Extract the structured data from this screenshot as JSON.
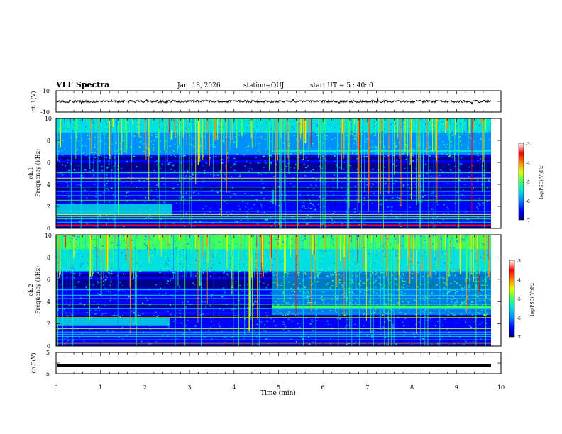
{
  "header": {
    "title": "VLF Spectra",
    "date": "Jan. 18, 2026",
    "station": "station=OUJ",
    "start_ut": "start UT =  5 : 40: 0"
  },
  "chart_data": {
    "type": "heatmap",
    "x_axis": {
      "label": "Time (min)",
      "range": [
        0,
        10
      ],
      "ticks": [
        "0",
        "1",
        "2",
        "3",
        "4",
        "5",
        "6",
        "7",
        "8",
        "9",
        "10"
      ]
    },
    "panels": [
      {
        "id": "ch1-waveform",
        "type": "line",
        "ylabel": "ch.1(V)",
        "ylim": [
          -10,
          10
        ],
        "ticks": [
          "10",
          "-10"
        ],
        "baseline": 0
      },
      {
        "id": "ch1-spectrogram",
        "type": "heatmap",
        "ylabel_line1": "ch.1",
        "ylabel_line2": "Frequency (kHz)",
        "ylim": [
          0,
          10
        ],
        "ticks": [
          "0",
          "2",
          "4",
          "6",
          "8",
          "10"
        ]
      },
      {
        "id": "ch2-spectrogram",
        "type": "heatmap",
        "ylabel_line1": "ch.2",
        "ylabel_line2": "Frequency (kHz)",
        "ylim": [
          0,
          10
        ],
        "ticks": [
          "0",
          "2",
          "4",
          "6",
          "8",
          "10"
        ]
      },
      {
        "id": "ch3-waveform",
        "type": "line",
        "ylabel": "ch.3(V)",
        "ylim": [
          -5,
          5
        ],
        "ticks": [
          "5",
          "-5"
        ],
        "baseline": -1
      }
    ],
    "colorbar": {
      "label": "log(PSD)(V²/Hz)",
      "range": [
        -7,
        -3
      ],
      "ticks": [
        "-3",
        "-4",
        "-5",
        "-6",
        "-7"
      ],
      "colors": [
        "#00008a",
        "#0000ff",
        "#0090ff",
        "#00e0e0",
        "#40ff60",
        "#e0ff00",
        "#ff9000",
        "#ff0000",
        "#ffffff"
      ]
    },
    "features": {
      "ch1_band_khz": [
        1.2,
        2.2
      ],
      "ch1_band_end_min": 2.6,
      "ch2_band_khz": [
        1.8,
        2.5
      ],
      "ch2_band_end_min": 2.55,
      "ch2_burst_start_min": 4.85,
      "ch2_burst_khz": [
        2.8,
        7.2
      ],
      "ch1_upper_khz": 7.0
    }
  }
}
